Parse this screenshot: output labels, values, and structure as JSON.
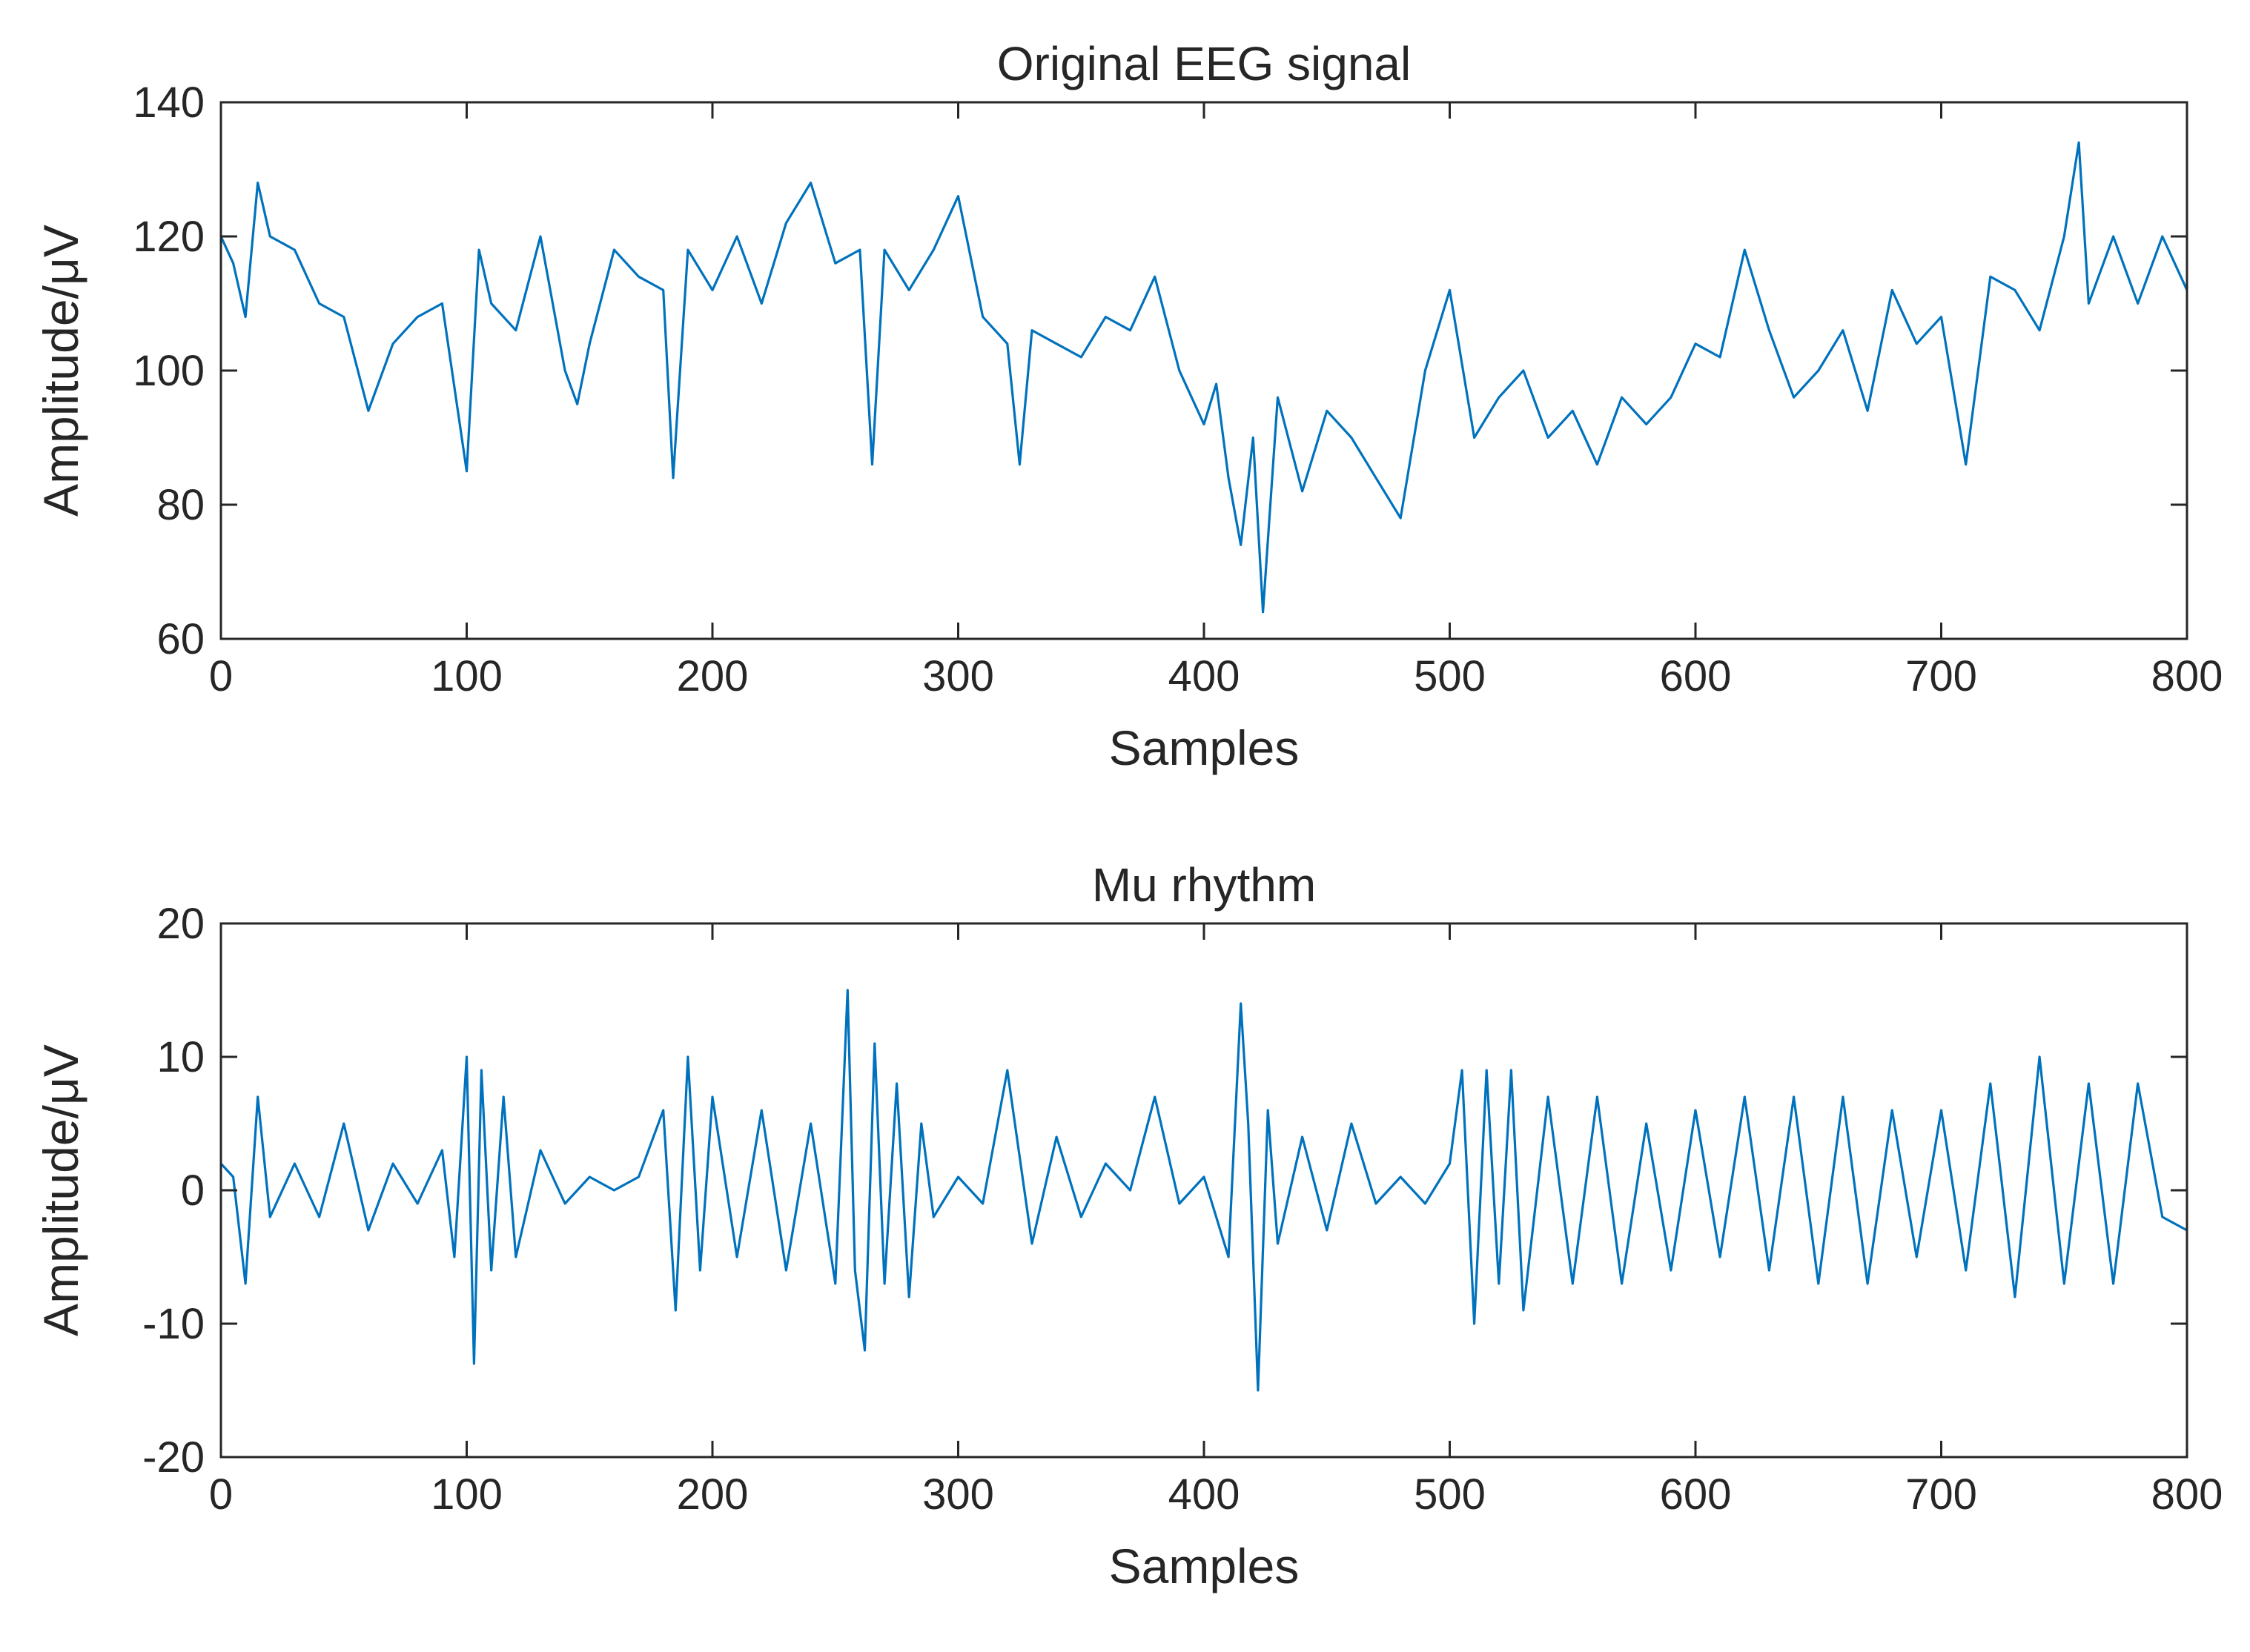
{
  "chart_data": [
    {
      "type": "line",
      "title": "Original EEG signal",
      "xlabel": "Samples",
      "ylabel": "Amplitude/μV",
      "xlim": [
        0,
        800
      ],
      "ylim": [
        60,
        140
      ],
      "xticks": [
        0,
        100,
        200,
        300,
        400,
        500,
        600,
        700,
        800
      ],
      "yticks": [
        60,
        80,
        100,
        120,
        140
      ],
      "grid": false,
      "series": [
        {
          "color": "#0072bd",
          "x": [
            0,
            5,
            10,
            15,
            20,
            30,
            40,
            50,
            60,
            70,
            80,
            90,
            100,
            105,
            110,
            120,
            130,
            140,
            145,
            150,
            160,
            170,
            180,
            184,
            190,
            200,
            210,
            220,
            230,
            240,
            250,
            260,
            265,
            270,
            280,
            290,
            300,
            310,
            320,
            325,
            330,
            340,
            350,
            360,
            370,
            380,
            390,
            400,
            405,
            410,
            415,
            420,
            424,
            430,
            440,
            450,
            460,
            470,
            480,
            490,
            500,
            510,
            520,
            530,
            540,
            550,
            560,
            570,
            580,
            590,
            600,
            610,
            620,
            630,
            640,
            650,
            660,
            670,
            680,
            690,
            700,
            710,
            720,
            730,
            740,
            750,
            756,
            760,
            770,
            780,
            790,
            800
          ],
          "y": [
            120,
            116,
            108,
            128,
            120,
            118,
            110,
            108,
            94,
            104,
            108,
            110,
            85,
            118,
            110,
            106,
            120,
            100,
            95,
            104,
            118,
            114,
            112,
            84,
            118,
            112,
            120,
            110,
            122,
            128,
            116,
            118,
            86,
            118,
            112,
            118,
            126,
            108,
            104,
            86,
            106,
            104,
            102,
            108,
            106,
            114,
            100,
            92,
            98,
            84,
            74,
            90,
            64,
            96,
            82,
            94,
            90,
            84,
            78,
            100,
            112,
            90,
            96,
            100,
            90,
            94,
            86,
            96,
            92,
            96,
            104,
            102,
            118,
            106,
            96,
            100,
            106,
            94,
            112,
            104,
            108,
            86,
            114,
            112,
            106,
            120,
            134,
            110,
            120,
            110,
            120,
            112
          ]
        }
      ]
    },
    {
      "type": "line",
      "title": "Mu rhythm",
      "xlabel": "Samples",
      "ylabel": "Amplitude/μV",
      "xlim": [
        0,
        800
      ],
      "ylim": [
        -20,
        20
      ],
      "xticks": [
        0,
        100,
        200,
        300,
        400,
        500,
        600,
        700,
        800
      ],
      "yticks": [
        -20,
        -10,
        0,
        10,
        20
      ],
      "grid": false,
      "series": [
        {
          "color": "#0072bd",
          "x": [
            0,
            5,
            10,
            15,
            20,
            30,
            40,
            50,
            60,
            70,
            80,
            90,
            95,
            100,
            103,
            106,
            110,
            115,
            120,
            130,
            140,
            150,
            160,
            170,
            180,
            185,
            190,
            195,
            200,
            210,
            220,
            230,
            240,
            250,
            255,
            258,
            262,
            266,
            270,
            275,
            280,
            285,
            290,
            300,
            310,
            320,
            330,
            340,
            350,
            360,
            370,
            380,
            390,
            400,
            410,
            415,
            418,
            422,
            426,
            430,
            440,
            450,
            460,
            470,
            480,
            490,
            500,
            505,
            510,
            515,
            520,
            525,
            530,
            540,
            550,
            560,
            570,
            580,
            590,
            600,
            610,
            620,
            630,
            640,
            650,
            660,
            670,
            680,
            690,
            700,
            710,
            720,
            730,
            740,
            750,
            760,
            770,
            780,
            790,
            800
          ],
          "y": [
            2,
            1,
            -7,
            7,
            -2,
            2,
            -2,
            5,
            -3,
            2,
            -1,
            3,
            -5,
            10,
            -13,
            9,
            -6,
            7,
            -5,
            3,
            -1,
            1,
            0,
            1,
            6,
            -9,
            10,
            -6,
            7,
            -5,
            6,
            -6,
            5,
            -7,
            15,
            -6,
            -12,
            11,
            -7,
            8,
            -8,
            5,
            -2,
            1,
            -1,
            9,
            -4,
            4,
            -2,
            2,
            0,
            7,
            -1,
            1,
            -5,
            14,
            5,
            -15,
            6,
            -4,
            4,
            -3,
            5,
            -1,
            1,
            -1,
            2,
            9,
            -10,
            9,
            -7,
            9,
            -9,
            7,
            -7,
            7,
            -7,
            5,
            -6,
            6,
            -5,
            7,
            -6,
            7,
            -7,
            7,
            -7,
            6,
            -5,
            6,
            -6,
            8,
            -8,
            10,
            -7,
            8,
            -7,
            8,
            -2,
            -3
          ]
        }
      ]
    }
  ]
}
